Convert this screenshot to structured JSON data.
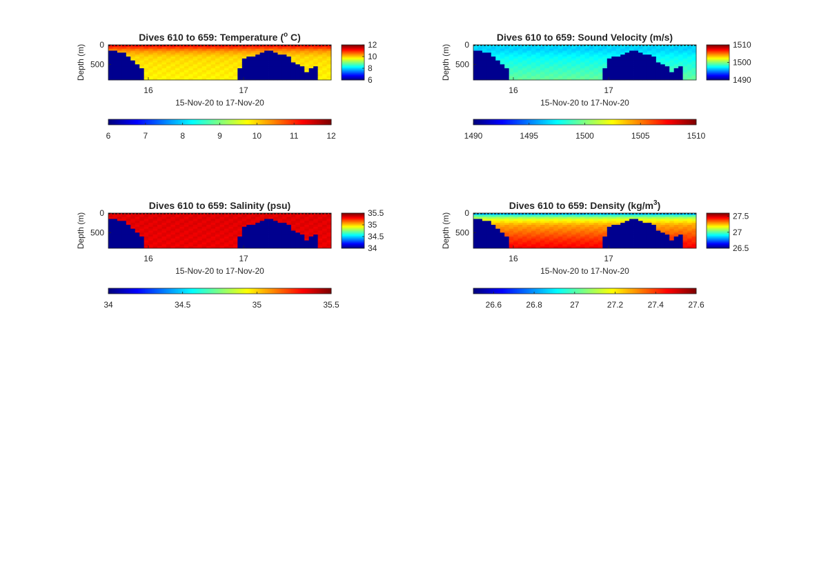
{
  "figure": {
    "colormap": "jet",
    "bathymetry_color": "#00008f",
    "background": "#ffffff"
  },
  "chart_data": [
    {
      "type": "heatmap",
      "title": "Dives 610 to 659: Temperature (",
      "title_sup": "o",
      "title_end": " C)",
      "xlabel": "15-Nov-20 to 17-Nov-20",
      "ylabel": "Depth (m)",
      "xlim": [
        15.58,
        17.92
      ],
      "x_ticks": [
        16,
        17
      ],
      "x_tick_labels": [
        "16",
        "17"
      ],
      "ylim": [
        0,
        900
      ],
      "y_reversed": true,
      "y_ticks": [
        0,
        500
      ],
      "y_tick_labels": [
        "0",
        "500"
      ],
      "clim": [
        6,
        12
      ],
      "small_colorbar_ticks": [
        12,
        10,
        8,
        6
      ],
      "small_colorbar_labels": [
        "12",
        "10",
        "8",
        "6"
      ],
      "colorbar_ticks": [
        6,
        7,
        8,
        9,
        10,
        11,
        12
      ],
      "colorbar_labels": [
        "6",
        "7",
        "8",
        "9",
        "10",
        "11",
        "12"
      ],
      "profile": {
        "depth": [
          0,
          60,
          150,
          300,
          500,
          900
        ],
        "value": [
          11.3,
          11.0,
          10.4,
          10.0,
          9.9,
          9.8
        ]
      },
      "bottom_depth": [
        120,
        150,
        160,
        160,
        260,
        380,
        500,
        560,
        900,
        900,
        900,
        900,
        900,
        900,
        900,
        900,
        900,
        900,
        900,
        900,
        900,
        900,
        900,
        900,
        900,
        900,
        900,
        900,
        900,
        600,
        340,
        300,
        260,
        240,
        200,
        150,
        150,
        200,
        220,
        250,
        280,
        420,
        480,
        540,
        660,
        600,
        520,
        900,
        900,
        900
      ]
    },
    {
      "type": "heatmap",
      "title": "Dives 610 to 659: Sound Velocity (m/s)",
      "xlabel": "15-Nov-20 to 17-Nov-20",
      "ylabel": "Depth (m)",
      "xlim": [
        15.58,
        17.92
      ],
      "x_ticks": [
        16,
        17
      ],
      "x_tick_labels": [
        "16",
        "17"
      ],
      "ylim": [
        0,
        900
      ],
      "y_reversed": true,
      "y_ticks": [
        0,
        500
      ],
      "y_tick_labels": [
        "0",
        "500"
      ],
      "clim": [
        1490,
        1510
      ],
      "small_colorbar_ticks": [
        1510,
        1500,
        1490
      ],
      "small_colorbar_labels": [
        "1510",
        "1500",
        "1490"
      ],
      "colorbar_ticks": [
        1490,
        1495,
        1500,
        1505,
        1510
      ],
      "colorbar_labels": [
        "1490",
        "1495",
        "1500",
        "1505",
        "1510"
      ],
      "profile": {
        "depth": [
          0,
          100,
          300,
          600,
          900
        ],
        "value": [
          1497,
          1496.5,
          1497.5,
          1498.5,
          1499.5
        ]
      },
      "bottom_depth": [
        120,
        150,
        160,
        160,
        260,
        380,
        500,
        560,
        900,
        900,
        900,
        900,
        900,
        900,
        900,
        900,
        900,
        900,
        900,
        900,
        900,
        900,
        900,
        900,
        900,
        900,
        900,
        900,
        900,
        600,
        340,
        300,
        260,
        240,
        200,
        150,
        150,
        200,
        220,
        250,
        280,
        420,
        480,
        540,
        660,
        600,
        520,
        900,
        900,
        900
      ]
    },
    {
      "type": "heatmap",
      "title": "Dives 610 to 659: Salinity (psu)",
      "xlabel": "15-Nov-20 to 17-Nov-20",
      "ylabel": "Depth (m)",
      "xlim": [
        15.58,
        17.92
      ],
      "x_ticks": [
        16,
        17
      ],
      "x_tick_labels": [
        "16",
        "17"
      ],
      "ylim": [
        0,
        900
      ],
      "y_reversed": true,
      "y_ticks": [
        0,
        500
      ],
      "y_tick_labels": [
        "0",
        "500"
      ],
      "clim": [
        34,
        35.5
      ],
      "small_colorbar_ticks": [
        35.5,
        35,
        34.5,
        34
      ],
      "small_colorbar_labels": [
        "35.5",
        "35",
        "34.5",
        "34"
      ],
      "colorbar_ticks": [
        34,
        34.5,
        35,
        35.5
      ],
      "colorbar_labels": [
        "34",
        "34.5",
        "35",
        "35.5"
      ],
      "profile": {
        "depth": [
          0,
          900
        ],
        "value": [
          35.36,
          35.34
        ]
      },
      "bottom_depth": [
        120,
        150,
        160,
        160,
        260,
        380,
        500,
        560,
        900,
        900,
        900,
        900,
        900,
        900,
        900,
        900,
        900,
        900,
        900,
        900,
        900,
        900,
        900,
        900,
        900,
        900,
        900,
        900,
        900,
        600,
        340,
        300,
        260,
        240,
        200,
        150,
        150,
        200,
        220,
        250,
        280,
        420,
        480,
        540,
        660,
        600,
        520,
        900,
        900,
        900
      ]
    },
    {
      "type": "heatmap",
      "title": "Dives 610 to 659: Density (kg/m",
      "title_sup": "3",
      "title_end": ")",
      "xlabel": "15-Nov-20 to 17-Nov-20",
      "ylabel": "Depth (m)",
      "xlim": [
        15.58,
        17.92
      ],
      "x_ticks": [
        16,
        17
      ],
      "x_tick_labels": [
        "16",
        "17"
      ],
      "ylim": [
        0,
        900
      ],
      "y_reversed": true,
      "y_ticks": [
        0,
        500
      ],
      "y_tick_labels": [
        "0",
        "500"
      ],
      "clim": [
        26.5,
        27.6
      ],
      "small_colorbar_ticks": [
        27.5,
        27,
        26.5
      ],
      "small_colorbar_labels": [
        "27.5",
        "27",
        "26.5"
      ],
      "colorbar_ticks": [
        26.6,
        26.8,
        27,
        27.2,
        27.4,
        27.6
      ],
      "colorbar_labels": [
        "26.6",
        "26.8",
        "27",
        "27.2",
        "27.4",
        "27.6"
      ],
      "profile": {
        "depth": [
          0,
          50,
          150,
          300,
          500,
          700,
          900
        ],
        "value": [
          26.75,
          26.95,
          27.15,
          27.28,
          27.35,
          27.42,
          27.47
        ]
      },
      "bottom_depth": [
        120,
        150,
        160,
        160,
        260,
        380,
        500,
        560,
        900,
        900,
        900,
        900,
        900,
        900,
        900,
        900,
        900,
        900,
        900,
        900,
        900,
        900,
        900,
        900,
        900,
        900,
        900,
        900,
        900,
        600,
        340,
        300,
        260,
        240,
        200,
        150,
        150,
        200,
        220,
        250,
        280,
        420,
        480,
        540,
        660,
        600,
        520,
        900,
        900,
        900
      ]
    }
  ]
}
